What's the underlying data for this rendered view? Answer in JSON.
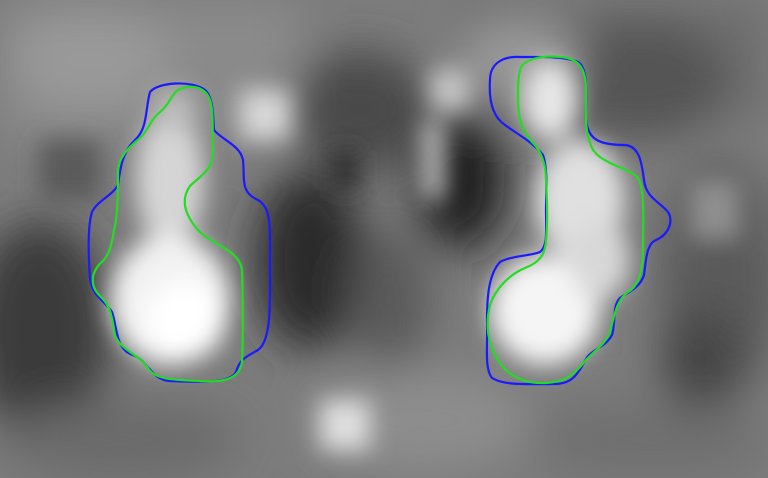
{
  "image": {
    "kind": "grayscale medical scan with segmentation contours",
    "contours": [
      {
        "name": "blue-contour",
        "color": "#1a1aff"
      },
      {
        "name": "green-contour",
        "color": "#22dd22"
      }
    ]
  }
}
